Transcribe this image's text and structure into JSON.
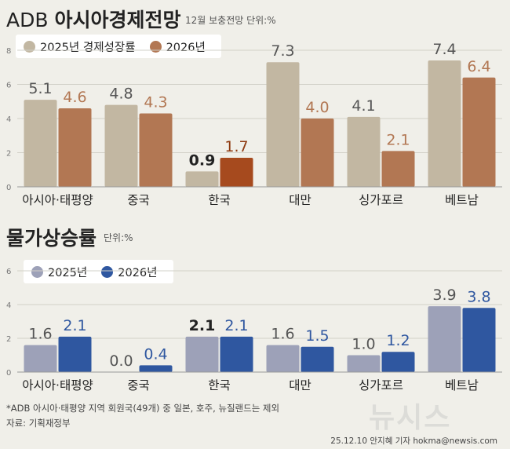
{
  "top": {
    "title_light": "ADB",
    "title_bold": "아시아경제전망",
    "subnote": "12월 보충전망 단위:%",
    "legend": [
      "2025년 경제성장률",
      "2026년"
    ]
  },
  "bottom": {
    "title": "물가상승률",
    "subnote": "단위:%",
    "legend": [
      "2025년",
      "2026년"
    ]
  },
  "colors": {
    "growth_2025": "#c2b7a2",
    "growth_2026": "#b27753",
    "growth_2026_korea": "#a64a1e",
    "growth_label_2025": "#555555",
    "growth_label_2026": "#b27753",
    "growth_label_korea": "#8e3a10",
    "cpi_2025": "#9da1b8",
    "cpi_2026": "#2f57a0",
    "cpi_label_2025": "#555555",
    "cpi_label_2026": "#2f57a0",
    "cpi_label_korea": "#222222"
  },
  "chart_data": [
    {
      "type": "bar",
      "title": "ADB 아시아경제전망 (경제성장률)",
      "categories": [
        "아시아·태평양",
        "중국",
        "한국",
        "대만",
        "싱가포르",
        "베트남"
      ],
      "series": [
        {
          "name": "2025년 경제성장률",
          "values": [
            5.1,
            4.8,
            0.9,
            7.3,
            4.1,
            7.4
          ]
        },
        {
          "name": "2026년",
          "values": [
            4.6,
            4.3,
            1.7,
            4.0,
            2.1,
            6.4
          ]
        }
      ],
      "value_labels": [
        [
          "5.1",
          "4.8",
          "0.9",
          "7.3",
          "4.1",
          "7.4"
        ],
        [
          "4.6",
          "4.3",
          "1.7",
          "4.0",
          "2.1",
          "6.4"
        ]
      ],
      "ylim": [
        0,
        8
      ],
      "yticks": [
        "0",
        "2",
        "4",
        "6",
        "8"
      ],
      "highlight_category": "한국"
    },
    {
      "type": "bar",
      "title": "물가상승률",
      "categories": [
        "아시아·태평양",
        "중국",
        "한국",
        "대만",
        "싱가포르",
        "베트남"
      ],
      "series": [
        {
          "name": "2025년",
          "values": [
            1.6,
            0.0,
            2.1,
            1.6,
            1.0,
            3.9
          ]
        },
        {
          "name": "2026년",
          "values": [
            2.1,
            0.4,
            2.1,
            1.5,
            1.2,
            3.8
          ]
        }
      ],
      "value_labels": [
        [
          "1.6",
          "0.0",
          "2.1",
          "1.6",
          "1.0",
          "3.9"
        ],
        [
          "2.1",
          "0.4",
          "2.1",
          "1.5",
          "1.2",
          "3.8"
        ]
      ],
      "ylim": [
        0,
        6
      ],
      "yticks": [
        "0",
        "2",
        "4",
        "6"
      ],
      "highlight_category": "한국"
    }
  ],
  "footer": {
    "footnote": "*ADB 아시아·태평양 지역 회원국(49개) 중 일본, 호주, 뉴질랜드는 제외",
    "source": "자료: 기획재정부",
    "logo": "뉴시스",
    "credit": "25.12.10 안지혜 기자 hokma@newsis.com"
  }
}
